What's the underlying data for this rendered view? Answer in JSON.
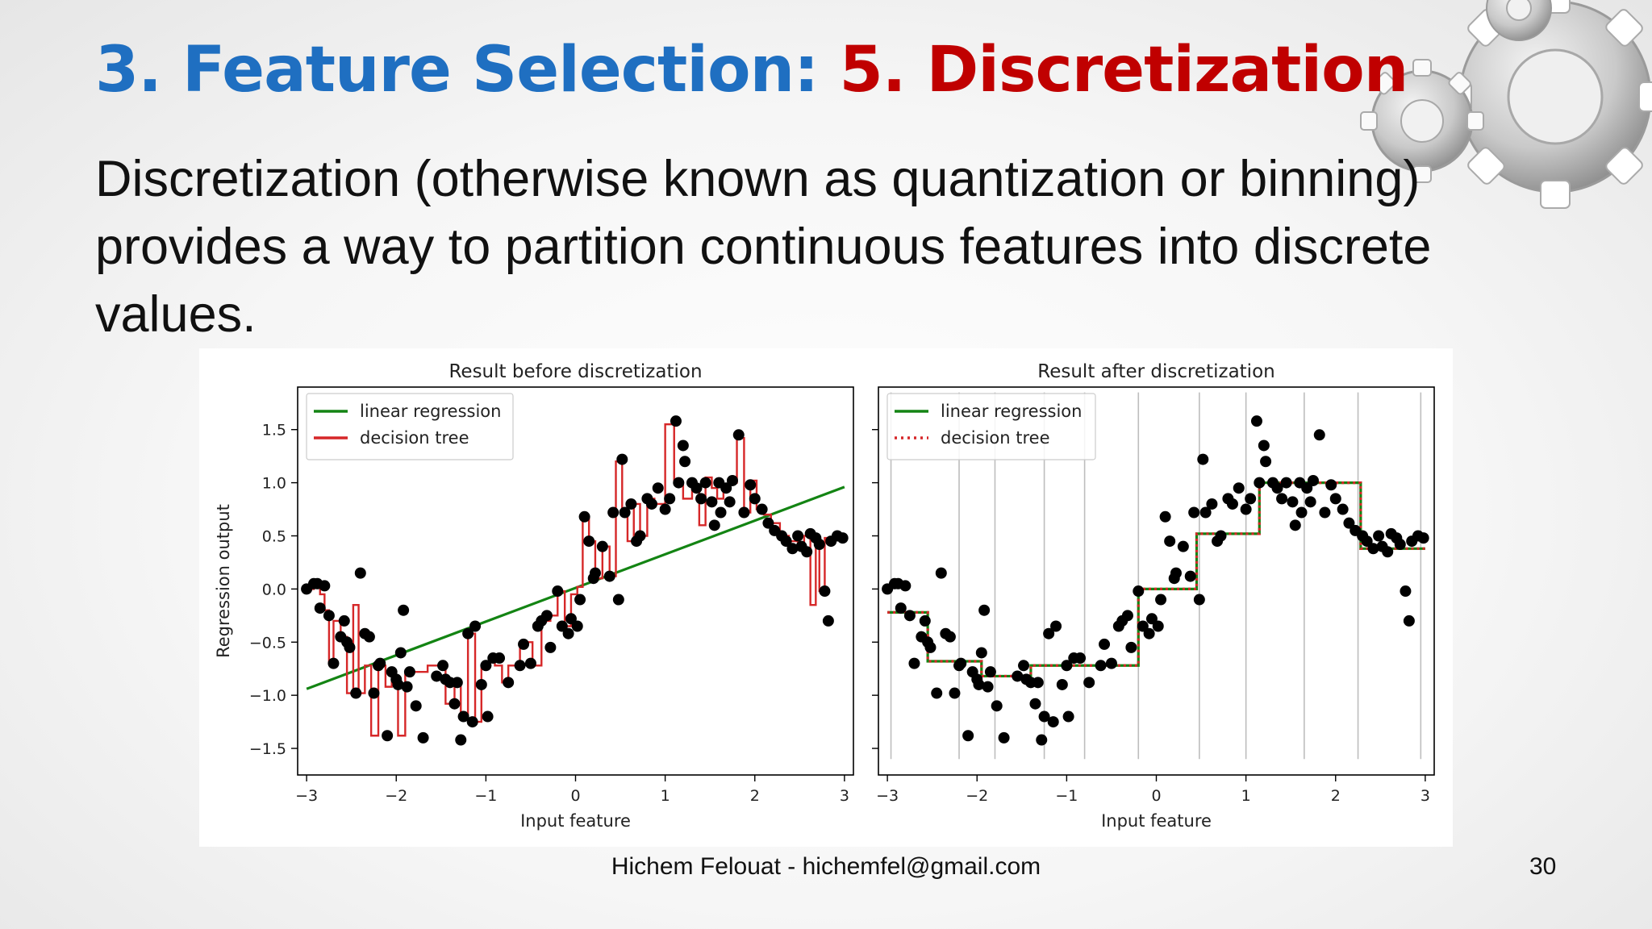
{
  "slide": {
    "title_part1": "3. Feature Selection:",
    "title_part2": "5. Discretization",
    "body": "Discretization (otherwise known as quantization or binning) provides a way to partition continuous features into discrete values.",
    "footer": "Hichem Felouat - hichemfel@gmail.com",
    "page_number": "30",
    "colors": {
      "title_blue": "#1f6fc1",
      "title_red": "#c00000",
      "linear": "#138413",
      "tree": "#d62728"
    }
  },
  "chart_data": [
    {
      "type": "line",
      "title": "Result before discretization",
      "xlabel": "Input feature",
      "ylabel": "Regression output",
      "xlim": [
        -3.1,
        3.1
      ],
      "ylim": [
        -1.75,
        1.9
      ],
      "xticks": [
        -3,
        -2,
        -1,
        0,
        1,
        2,
        3
      ],
      "xtick_labels": [
        "−3",
        "−2",
        "−1",
        "0",
        "1",
        "2",
        "3"
      ],
      "yticks": [
        -1.5,
        -1.0,
        -0.5,
        0.0,
        0.5,
        1.0,
        1.5
      ],
      "ytick_labels": [
        "−1.5",
        "−1.0",
        "−0.5",
        "0.0",
        "0.5",
        "1.0",
        "1.5"
      ],
      "legend": {
        "position": "top-left",
        "entries": [
          {
            "label": "linear regression",
            "color": "#138413",
            "style": "solid"
          },
          {
            "label": "decision tree",
            "color": "#d62728",
            "style": "solid"
          }
        ]
      },
      "series": [
        {
          "name": "linear regression",
          "kind": "line",
          "x": [
            -3,
            3
          ],
          "y": [
            -0.94,
            0.96
          ]
        },
        {
          "name": "decision tree",
          "kind": "step",
          "x": [
            -3.0,
            -2.92,
            -2.85,
            -2.8,
            -2.75,
            -2.7,
            -2.62,
            -2.55,
            -2.48,
            -2.42,
            -2.35,
            -2.28,
            -2.2,
            -2.12,
            -2.05,
            -1.98,
            -1.9,
            -1.82,
            -1.75,
            -1.65,
            -1.45,
            -1.35,
            -1.28,
            -1.2,
            -1.12,
            -1.05,
            -0.98,
            -0.9,
            -0.82,
            -0.75,
            -0.62,
            -0.48,
            -0.38,
            -0.28,
            -0.2,
            -0.12,
            -0.05,
            0.02,
            0.08,
            0.15,
            0.22,
            0.3,
            0.38,
            0.45,
            0.52,
            0.58,
            0.65,
            0.72,
            0.8,
            0.88,
            1.0,
            1.1,
            1.2,
            1.3,
            1.38,
            1.45,
            1.52,
            1.58,
            1.65,
            1.72,
            1.8,
            1.88,
            1.95,
            2.02,
            2.1,
            2.18,
            2.28,
            2.38,
            2.48,
            2.55,
            2.62,
            2.68,
            2.72,
            2.78,
            2.85,
            2.98
          ],
          "y": [
            0,
            0.05,
            -0.05,
            -0.2,
            -0.7,
            -0.3,
            -0.45,
            -0.98,
            -0.15,
            -0.98,
            -0.72,
            -1.38,
            -0.72,
            -0.92,
            -0.82,
            -1.38,
            -0.78,
            -0.78,
            -0.78,
            -0.72,
            -1.08,
            -0.88,
            -1.2,
            -0.42,
            -1.25,
            -0.72,
            -0.68,
            -0.72,
            -0.88,
            -0.72,
            -0.5,
            -0.72,
            -0.3,
            -0.25,
            -0.02,
            -0.35,
            -0.05,
            0.02,
            0.68,
            0.45,
            0.1,
            0.4,
            0.12,
            1.2,
            0.72,
            0.45,
            0.8,
            0.5,
            0.85,
            0.8,
            1.55,
            1.0,
            0.85,
            0.95,
            0.6,
            1.05,
            0.95,
            0.85,
            0.95,
            1.0,
            1.42,
            0.72,
            1.02,
            0.75,
            0.7,
            0.62,
            0.5,
            0.45,
            0.38,
            0.5,
            -0.15,
            0.42,
            -0.02,
            0.48,
            0.48,
            0.48
          ]
        },
        {
          "name": "points",
          "kind": "scatter",
          "x": [
            -3.0,
            -2.92,
            -2.88,
            -2.85,
            -2.8,
            -2.75,
            -2.7,
            -2.62,
            -2.58,
            -2.55,
            -2.52,
            -2.45,
            -2.4,
            -2.35,
            -2.3,
            -2.25,
            -2.2,
            -2.18,
            -2.1,
            -2.05,
            -2.0,
            -1.98,
            -1.95,
            -1.92,
            -1.88,
            -1.85,
            -1.78,
            -1.7,
            -1.55,
            -1.48,
            -1.45,
            -1.4,
            -1.35,
            -1.32,
            -1.28,
            -1.25,
            -1.2,
            -1.15,
            -1.12,
            -1.05,
            -1.0,
            -0.98,
            -0.92,
            -0.85,
            -0.75,
            -0.62,
            -0.58,
            -0.5,
            -0.42,
            -0.38,
            -0.32,
            -0.28,
            -0.2,
            -0.15,
            -0.08,
            -0.05,
            0.02,
            0.05,
            0.1,
            0.15,
            0.2,
            0.22,
            0.3,
            0.38,
            0.42,
            0.48,
            0.52,
            0.55,
            0.62,
            0.68,
            0.72,
            0.8,
            0.85,
            0.92,
            1.0,
            1.05,
            1.12,
            1.15,
            1.2,
            1.22,
            1.3,
            1.35,
            1.4,
            1.45,
            1.52,
            1.55,
            1.6,
            1.62,
            1.68,
            1.72,
            1.75,
            1.82,
            1.88,
            1.95,
            2.0,
            2.08,
            2.15,
            2.22,
            2.3,
            2.35,
            2.42,
            2.48,
            2.52,
            2.58,
            2.62,
            2.68,
            2.72,
            2.78,
            2.82,
            2.85,
            2.92,
            2.98
          ],
          "y": [
            0.0,
            0.05,
            0.05,
            -0.18,
            0.03,
            -0.25,
            -0.7,
            -0.45,
            -0.3,
            -0.5,
            -0.55,
            -0.98,
            0.15,
            -0.42,
            -0.45,
            -0.98,
            -0.72,
            -0.7,
            -1.38,
            -0.78,
            -0.85,
            -0.9,
            -0.6,
            -0.2,
            -0.92,
            -0.78,
            -1.1,
            -1.4,
            -0.82,
            -0.72,
            -0.85,
            -0.88,
            -1.08,
            -0.88,
            -1.42,
            -1.2,
            -0.42,
            -1.25,
            -0.35,
            -0.9,
            -0.72,
            -1.2,
            -0.65,
            -0.65,
            -0.88,
            -0.72,
            -0.52,
            -0.7,
            -0.35,
            -0.3,
            -0.25,
            -0.55,
            -0.02,
            -0.35,
            -0.42,
            -0.28,
            -0.35,
            -0.1,
            0.68,
            0.45,
            0.1,
            0.15,
            0.4,
            0.12,
            0.72,
            -0.1,
            1.22,
            0.72,
            0.8,
            0.45,
            0.5,
            0.85,
            0.8,
            0.95,
            0.75,
            0.85,
            1.58,
            1.0,
            1.35,
            1.2,
            1.0,
            0.95,
            0.85,
            1.0,
            0.82,
            0.6,
            1.0,
            0.72,
            0.95,
            0.82,
            1.02,
            1.45,
            0.72,
            0.98,
            0.85,
            0.75,
            0.62,
            0.55,
            0.5,
            0.45,
            0.38,
            0.5,
            0.4,
            0.35,
            0.52,
            0.48,
            0.42,
            -0.02,
            -0.3,
            0.45,
            0.5,
            0.48
          ]
        }
      ]
    },
    {
      "type": "line",
      "title": "Result after discretization",
      "xlabel": "Input feature",
      "ylabel": "",
      "xlim": [
        -3.1,
        3.1
      ],
      "ylim": [
        -1.75,
        1.9
      ],
      "xticks": [
        -3,
        -2,
        -1,
        0,
        1,
        2,
        3
      ],
      "xtick_labels": [
        "−3",
        "−2",
        "−1",
        "0",
        "1",
        "2",
        "3"
      ],
      "yticks": [
        -1.5,
        -1.0,
        -0.5,
        0.0,
        0.5,
        1.0,
        1.5
      ],
      "ytick_labels": [],
      "bin_edges": [
        -2.96,
        -2.2,
        -1.8,
        -1.25,
        -0.8,
        -0.2,
        0.48,
        1.0,
        1.65,
        2.25,
        2.95
      ],
      "legend": {
        "position": "top-left",
        "entries": [
          {
            "label": "linear regression",
            "color": "#138413",
            "style": "solid"
          },
          {
            "label": "decision tree",
            "color": "#d62728",
            "style": "dotted"
          }
        ]
      },
      "series": [
        {
          "name": "linear regression",
          "kind": "step",
          "x": [
            -3.0,
            -2.55,
            -1.95,
            -1.4,
            -1.0,
            -0.2,
            0.45,
            0.92,
            1.15,
            1.78,
            2.28,
            3.0
          ],
          "y": [
            -0.22,
            -0.68,
            -0.82,
            -0.72,
            -0.72,
            0.0,
            0.52,
            0.52,
            1.0,
            1.0,
            0.38,
            0.38
          ]
        },
        {
          "name": "decision tree",
          "kind": "step",
          "x": [
            -3.0,
            -2.55,
            -1.95,
            -1.4,
            -1.0,
            -0.2,
            0.45,
            0.92,
            1.15,
            1.78,
            2.28,
            3.0
          ],
          "y": [
            -0.22,
            -0.68,
            -0.82,
            -0.72,
            -0.72,
            0.0,
            0.52,
            0.52,
            1.0,
            1.0,
            0.38,
            0.38
          ]
        },
        {
          "name": "points",
          "kind": "scatter",
          "x": [
            -3.0,
            -2.92,
            -2.88,
            -2.85,
            -2.8,
            -2.75,
            -2.7,
            -2.62,
            -2.58,
            -2.55,
            -2.52,
            -2.45,
            -2.4,
            -2.35,
            -2.3,
            -2.25,
            -2.2,
            -2.18,
            -2.1,
            -2.05,
            -2.0,
            -1.98,
            -1.95,
            -1.92,
            -1.88,
            -1.85,
            -1.78,
            -1.7,
            -1.55,
            -1.48,
            -1.45,
            -1.4,
            -1.35,
            -1.32,
            -1.28,
            -1.25,
            -1.2,
            -1.15,
            -1.12,
            -1.05,
            -1.0,
            -0.98,
            -0.92,
            -0.85,
            -0.75,
            -0.62,
            -0.58,
            -0.5,
            -0.42,
            -0.38,
            -0.32,
            -0.28,
            -0.2,
            -0.15,
            -0.08,
            -0.05,
            0.02,
            0.05,
            0.1,
            0.15,
            0.2,
            0.22,
            0.3,
            0.38,
            0.42,
            0.48,
            0.52,
            0.55,
            0.62,
            0.68,
            0.72,
            0.8,
            0.85,
            0.92,
            1.0,
            1.05,
            1.12,
            1.15,
            1.2,
            1.22,
            1.3,
            1.35,
            1.4,
            1.45,
            1.52,
            1.55,
            1.6,
            1.62,
            1.68,
            1.72,
            1.75,
            1.82,
            1.88,
            1.95,
            2.0,
            2.08,
            2.15,
            2.22,
            2.3,
            2.35,
            2.42,
            2.48,
            2.52,
            2.58,
            2.62,
            2.68,
            2.72,
            2.78,
            2.82,
            2.85,
            2.92,
            2.98
          ],
          "y": [
            0.0,
            0.05,
            0.05,
            -0.18,
            0.03,
            -0.25,
            -0.7,
            -0.45,
            -0.3,
            -0.5,
            -0.55,
            -0.98,
            0.15,
            -0.42,
            -0.45,
            -0.98,
            -0.72,
            -0.7,
            -1.38,
            -0.78,
            -0.85,
            -0.9,
            -0.6,
            -0.2,
            -0.92,
            -0.78,
            -1.1,
            -1.4,
            -0.82,
            -0.72,
            -0.85,
            -0.88,
            -1.08,
            -0.88,
            -1.42,
            -1.2,
            -0.42,
            -1.25,
            -0.35,
            -0.9,
            -0.72,
            -1.2,
            -0.65,
            -0.65,
            -0.88,
            -0.72,
            -0.52,
            -0.7,
            -0.35,
            -0.3,
            -0.25,
            -0.55,
            -0.02,
            -0.35,
            -0.42,
            -0.28,
            -0.35,
            -0.1,
            0.68,
            0.45,
            0.1,
            0.15,
            0.4,
            0.12,
            0.72,
            -0.1,
            1.22,
            0.72,
            0.8,
            0.45,
            0.5,
            0.85,
            0.8,
            0.95,
            0.75,
            0.85,
            1.58,
            1.0,
            1.35,
            1.2,
            1.0,
            0.95,
            0.85,
            1.0,
            0.82,
            0.6,
            1.0,
            0.72,
            0.95,
            0.82,
            1.02,
            1.45,
            0.72,
            0.98,
            0.85,
            0.75,
            0.62,
            0.55,
            0.5,
            0.45,
            0.38,
            0.5,
            0.4,
            0.35,
            0.52,
            0.48,
            0.42,
            -0.02,
            -0.3,
            0.45,
            0.5,
            0.48
          ]
        }
      ]
    }
  ]
}
